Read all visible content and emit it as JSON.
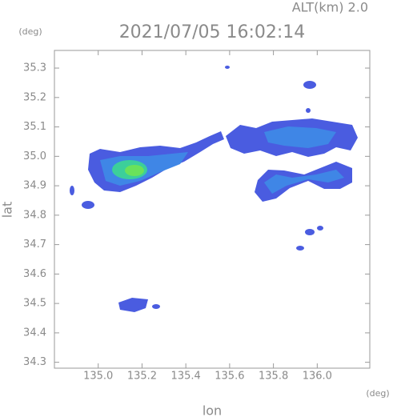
{
  "chart_data": {
    "type": "map",
    "title": "2021/07/05 16:02:14",
    "altitude_label": "ALT(km)  2.0",
    "x_label": "lon",
    "y_label": "lat",
    "x_unit": "(deg)",
    "y_unit": "(deg)",
    "xlim": [
      134.8,
      136.24
    ],
    "ylim": [
      34.28,
      35.36
    ],
    "xticks": [
      {
        "value": 135.0,
        "label": "135.0"
      },
      135.2,
      135.4,
      135.6,
      135.8,
      {
        "value": 136.0,
        "label": "136.0"
      }
    ],
    "yticks": [
      34.3,
      34.4,
      34.5,
      34.6,
      34.7,
      34.8,
      34.9,
      {
        "value": 35.0,
        "label": "35.0"
      },
      35.1,
      35.2,
      35.3
    ]
  }
}
